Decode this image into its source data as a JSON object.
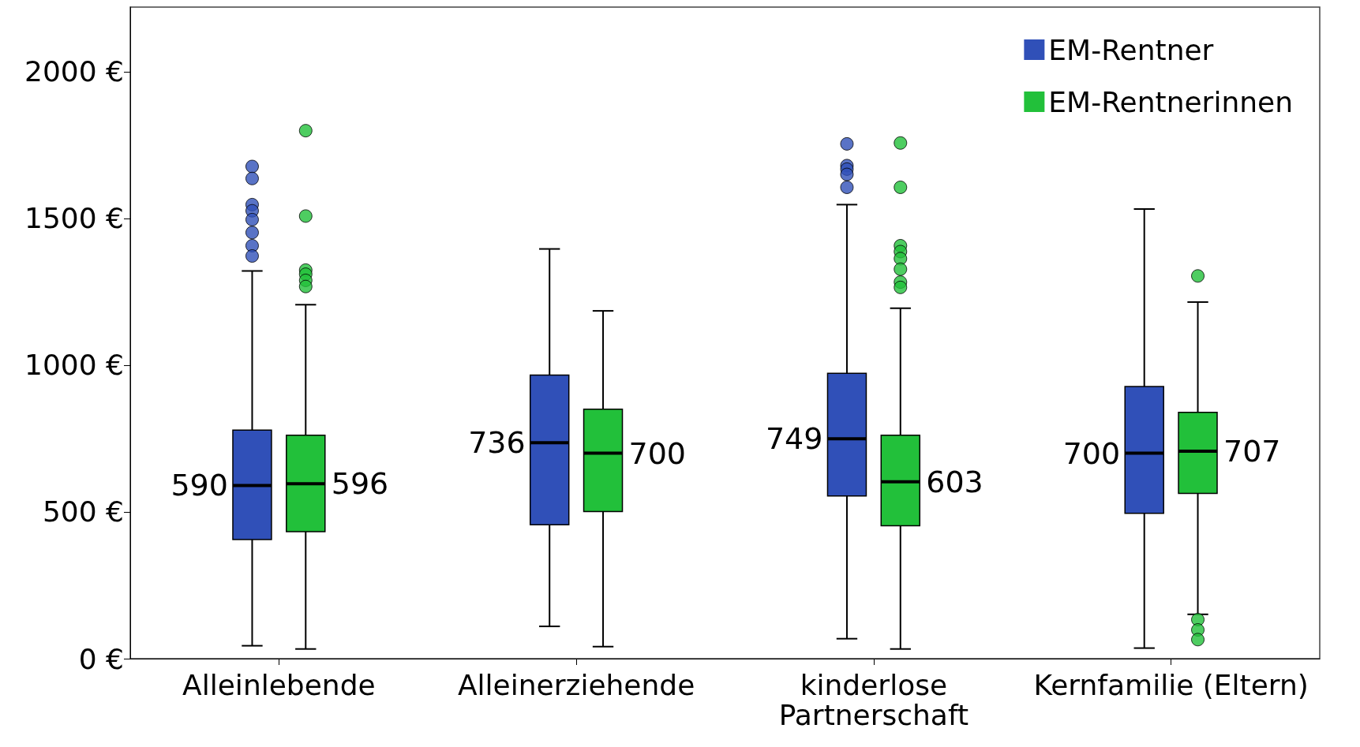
{
  "chart_data": {
    "type": "box",
    "categories": [
      "Alleinlebende",
      "Alleinerziehende",
      "kinderlose\nPartnerschaft",
      "Kernfamilie (Eltern)"
    ],
    "ylim": [
      0,
      2220
    ],
    "yticks": [
      {
        "value": 0,
        "label": "0 €"
      },
      {
        "value": 500,
        "label": "500 €"
      },
      {
        "value": 1000,
        "label": "1000 €"
      },
      {
        "value": 1500,
        "label": "1500 €"
      },
      {
        "value": 2000,
        "label": "2000 €"
      }
    ],
    "legend": "top right",
    "series": [
      {
        "name": "EM-Rentner",
        "color": "#3050b8",
        "value_labels": [
          "590",
          "736",
          "749",
          "700"
        ],
        "boxes": [
          {
            "low": 44,
            "q1": 406,
            "median": 590,
            "q3": 779,
            "high": 1321,
            "outliers": [
              1677,
              1636,
              1547,
              1526,
              1496,
              1452,
              1407,
              1372
            ]
          },
          {
            "low": 110,
            "q1": 456,
            "median": 736,
            "q3": 966,
            "high": 1396
          },
          {
            "low": 68,
            "q1": 554,
            "median": 749,
            "q3": 972,
            "high": 1547,
            "outliers": [
              1754,
              1680,
              1668,
              1650,
              1606
            ]
          },
          {
            "low": 36,
            "q1": 495,
            "median": 700,
            "q3": 927,
            "high": 1532
          }
        ]
      },
      {
        "name": "EM-Rentnerinnen",
        "color": "#22c03a",
        "value_labels": [
          "596",
          "700",
          "603",
          "707"
        ],
        "boxes": [
          {
            "low": 33,
            "q1": 433,
            "median": 596,
            "q3": 761,
            "high": 1206,
            "outliers": [
              1799,
              1508,
              1324,
              1310,
              1289,
              1268
            ]
          },
          {
            "low": 41,
            "q1": 501,
            "median": 700,
            "q3": 850,
            "high": 1185
          },
          {
            "low": 33,
            "q1": 453,
            "median": 603,
            "q3": 761,
            "high": 1194,
            "outliers": [
              1757,
              1606,
              1407,
              1387,
              1363,
              1327,
              1283,
              1265
            ]
          },
          {
            "low": 151,
            "q1": 563,
            "median": 707,
            "q3": 839,
            "high": 1215,
            "outliers": [
              1304,
              133,
              98,
              65
            ]
          }
        ]
      }
    ]
  }
}
